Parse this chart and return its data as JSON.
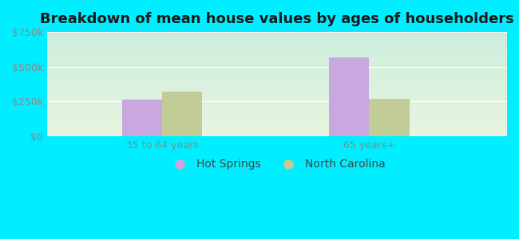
{
  "title": "Breakdown of mean house values by ages of householders",
  "categories": [
    "35 to 64 years",
    "65 years+"
  ],
  "series": {
    "Hot Springs": [
      262000,
      570000
    ],
    "North Carolina": [
      320000,
      268000
    ]
  },
  "bar_colors": {
    "Hot Springs": "#c9a8df",
    "North Carolina": "#c2cc96"
  },
  "ylim": [
    0,
    750000
  ],
  "yticks": [
    0,
    250000,
    500000,
    750000
  ],
  "ytick_labels": [
    "$0",
    "$250k",
    "$500k",
    "$750k"
  ],
  "background_outer": "#00eeff",
  "bg_top": "#cceedd",
  "bg_bottom": "#e8f5e0",
  "title_fontsize": 13,
  "axis_label_fontsize": 9,
  "legend_fontsize": 10,
  "bar_width": 0.35,
  "group_positions": [
    1.0,
    2.8
  ]
}
